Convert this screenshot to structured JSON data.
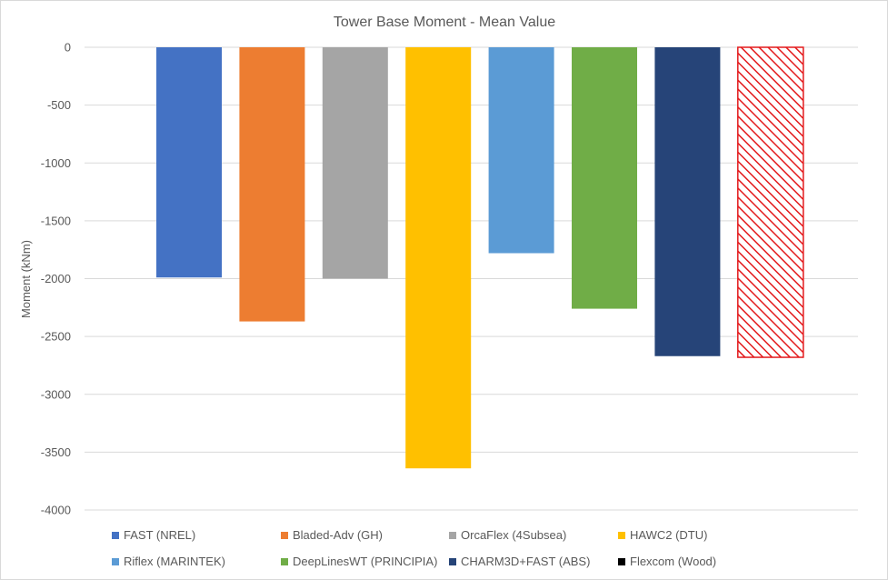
{
  "chart_data": {
    "type": "bar",
    "title": "Tower Base Moment - Mean Value",
    "xlabel": "",
    "ylabel": "Moment (kNm)",
    "ylim": [
      -4000,
      0
    ],
    "yticks": [
      0,
      -500,
      -1000,
      -1500,
      -2000,
      -2500,
      -3000,
      -3500,
      -4000
    ],
    "grid": true,
    "legend_position": "bottom",
    "series": [
      {
        "name": "FAST (NREL)",
        "value": -1990,
        "color": "#4472c4",
        "pattern": "solid"
      },
      {
        "name": "Bladed-Adv (GH)",
        "value": -2370,
        "color": "#ed7d31",
        "pattern": "solid"
      },
      {
        "name": "OrcaFlex (4Subsea)",
        "value": -2000,
        "color": "#a5a5a5",
        "pattern": "solid"
      },
      {
        "name": "HAWC2 (DTU)",
        "value": -3640,
        "color": "#ffc000",
        "pattern": "solid"
      },
      {
        "name": "Riflex (MARINTEK)",
        "value": -1780,
        "color": "#5b9bd5",
        "pattern": "solid"
      },
      {
        "name": "DeepLinesWT (PRINCIPIA)",
        "value": -2260,
        "color": "#70ad47",
        "pattern": "solid"
      },
      {
        "name": "CHARM3D+FAST (ABS)",
        "value": -2670,
        "color": "#264478",
        "pattern": "solid"
      },
      {
        "name": "Flexcom (Wood)",
        "value": -2680,
        "color": "#ff0000",
        "pattern": "hatched",
        "legend_color": "#000000"
      }
    ]
  }
}
